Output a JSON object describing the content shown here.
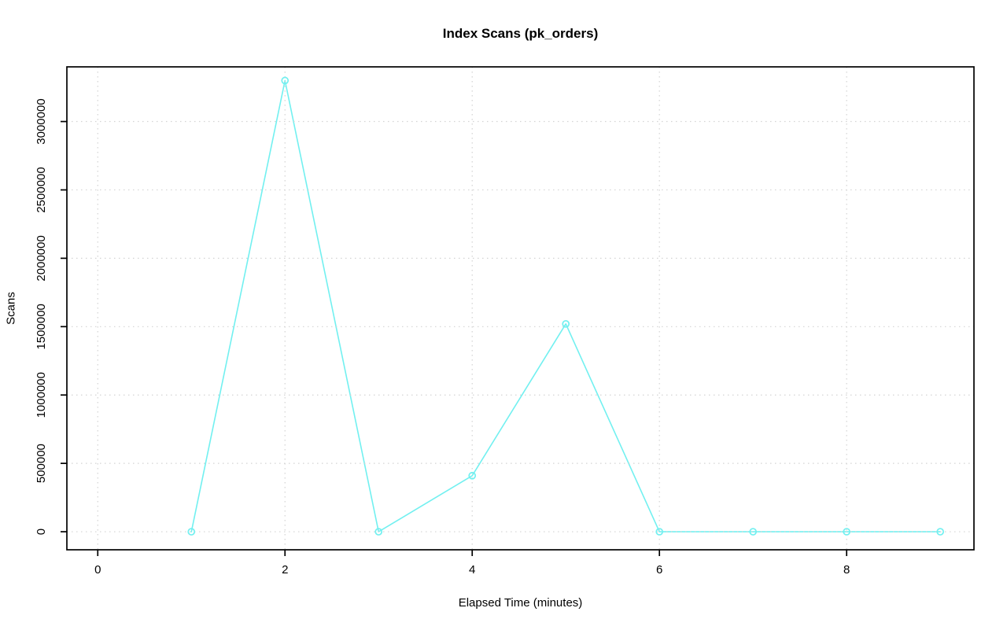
{
  "chart_data": {
    "type": "line",
    "title": "Index Scans (pk_orders)",
    "xlabel": "Elapsed Time (minutes)",
    "ylabel": "Scans",
    "x": [
      1,
      2,
      3,
      4,
      5,
      6,
      7,
      8,
      9
    ],
    "series": [
      {
        "name": "pk_orders",
        "values": [
          0,
          3300000,
          0,
          410000,
          1520000,
          0,
          0,
          0,
          0
        ]
      }
    ],
    "xlim": [
      -0.33,
      9.36
    ],
    "ylim": [
      -132000,
      3400000
    ],
    "xticks": [
      0,
      2,
      4,
      6,
      8
    ],
    "xtick_labels": [
      "0",
      "2",
      "4",
      "6",
      "8"
    ],
    "yticks": [
      0,
      500000,
      1000000,
      1500000,
      2000000,
      2500000,
      3000000
    ],
    "ytick_labels": [
      "0",
      "500000",
      "1000000",
      "1500000",
      "2000000",
      "2500000",
      "3000000"
    ],
    "grid": true,
    "grid_style": "dotted",
    "legend": "none",
    "marker": "open-circle",
    "line_style": "solid",
    "colors": {
      "line": "#72F0F0",
      "grid": "#D3D3D3",
      "axis": "#000000",
      "background": "#FFFFFF"
    }
  }
}
